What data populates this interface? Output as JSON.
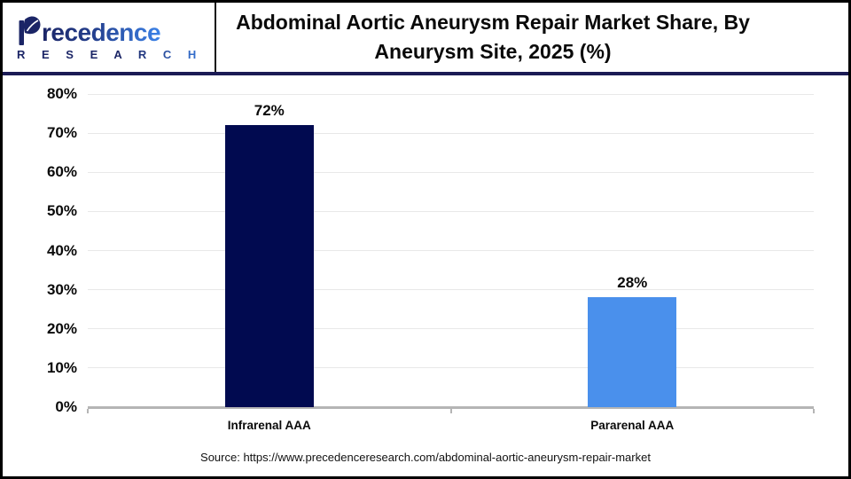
{
  "header": {
    "logo_line1": "recedence",
    "logo_line2": "R E S E A R C H",
    "title_line1": "Abdominal Aortic Aneurysm Repair Market Share, By",
    "title_line2": "Aneurysm Site, 2025 (%)"
  },
  "chart_data": {
    "type": "bar",
    "title": "Abdominal Aortic Aneurysm Repair Market Share, By Aneurysm Site, 2025 (%)",
    "categories": [
      "Infrarenal AAA",
      "Pararenal AAA"
    ],
    "values": [
      72,
      28
    ],
    "value_labels": [
      "72%",
      "28%"
    ],
    "bar_colors": [
      "#010a50",
      "#4a90ec"
    ],
    "xlabel": "",
    "ylabel": "",
    "ylim": [
      0,
      80
    ],
    "ytick_step": 10,
    "ytick_labels": [
      "0%",
      "10%",
      "20%",
      "30%",
      "40%",
      "50%",
      "60%",
      "70%",
      "80%"
    ],
    "grid": true,
    "legend_position": "none"
  },
  "footer": {
    "source": "Source: https://www.precedenceresearch.com/abdominal-aortic-aneurysm-repair-market"
  },
  "colors": {
    "bar_infrarenal": "#010a50",
    "bar_pararenal": "#4a90ec",
    "header_separator": "#1b1b55",
    "logo_navy": "#1b2566",
    "logo_blue": "#3b82e8",
    "gridline": "#e8e8e8",
    "axis": "#b5b5b5"
  }
}
